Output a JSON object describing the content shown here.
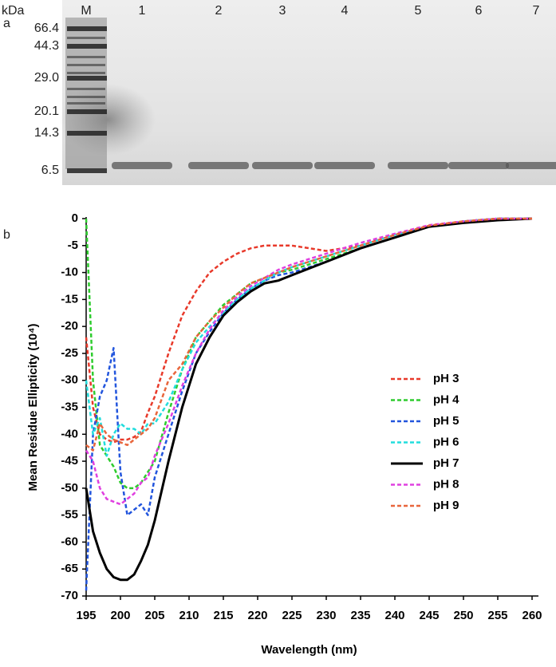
{
  "gel": {
    "panel_label": "a",
    "unit_label": "kDa",
    "lane_labels": [
      "M",
      "1",
      "2",
      "3",
      "4",
      "5",
      "6",
      "7"
    ],
    "marker_labels": [
      "66.4",
      "44.3",
      "29.0",
      "20.1",
      "14.3",
      "6.5"
    ]
  },
  "chart_data": {
    "type": "line",
    "panel_label": "b",
    "x_label": "Wavelength (nm)",
    "y_label": "Mean Residue Ellipticity (10⁴)",
    "x": [
      195,
      196,
      197,
      198,
      199,
      200,
      201,
      202,
      203,
      204,
      205,
      207,
      209,
      211,
      213,
      215,
      217,
      219,
      221,
      223,
      225,
      230,
      235,
      240,
      245,
      250,
      255,
      260
    ],
    "series": [
      {
        "name": "pH 3",
        "color": "#e8392a",
        "line_style": "dashed",
        "values": [
          -22,
          -35,
          -40,
          -41,
          -41.5,
          -41,
          -41,
          -40.5,
          -39.5,
          -36,
          -33,
          -25,
          -18,
          -13.5,
          -10,
          -8,
          -6.5,
          -5.5,
          -5,
          -5,
          -5,
          -6,
          -5,
          -3,
          -1.5,
          -0.5,
          0,
          0
        ]
      },
      {
        "name": "pH 4",
        "color": "#2ecc2e",
        "line_style": "dashed",
        "values": [
          0,
          -30,
          -42,
          -44,
          -46,
          -49,
          -50,
          -50,
          -49,
          -47,
          -45,
          -36,
          -28,
          -22,
          -19,
          -16,
          -14,
          -12,
          -11,
          -10,
          -9.5,
          -7.5,
          -5.5,
          -3.5,
          -1.5,
          -0.5,
          0,
          0
        ]
      },
      {
        "name": "pH 5",
        "color": "#2255dd",
        "line_style": "dashed",
        "values": [
          -69,
          -40,
          -33,
          -30,
          -24,
          -47,
          -55,
          -54,
          -53,
          -55,
          -48,
          -40,
          -32,
          -25,
          -21,
          -17.5,
          -15,
          -13,
          -11.5,
          -10.5,
          -10,
          -8,
          -5.5,
          -3.5,
          -1.5,
          -0.5,
          0,
          0
        ]
      },
      {
        "name": "pH 6",
        "color": "#22dddd",
        "line_style": "dashed",
        "values": [
          -30,
          -40,
          -37,
          -44,
          -40,
          -38,
          -39,
          -39,
          -40,
          -38,
          -38,
          -34,
          -28,
          -23,
          -20,
          -17.5,
          -15,
          -13,
          -11.5,
          -10,
          -9,
          -7,
          -5,
          -3,
          -1.5,
          -0.5,
          0,
          0
        ]
      },
      {
        "name": "pH 7",
        "color": "#000000",
        "line_style": "solid",
        "values": [
          -50,
          -58,
          -62,
          -65,
          -66.5,
          -67,
          -67,
          -66,
          -63.5,
          -60.5,
          -56,
          -45,
          -35,
          -27,
          -22,
          -18,
          -15.5,
          -13.5,
          -12,
          -11.5,
          -10.5,
          -8,
          -5.5,
          -3.5,
          -1.5,
          -0.8,
          -0.3,
          0
        ]
      },
      {
        "name": "pH 8",
        "color": "#e040e0",
        "line_style": "dashed",
        "values": [
          -43,
          -45,
          -50,
          -52,
          -52.5,
          -53,
          -52,
          -51,
          -49,
          -48,
          -44,
          -38,
          -31,
          -25,
          -20.5,
          -17,
          -14.5,
          -12.5,
          -11,
          -9.5,
          -8.5,
          -6.5,
          -4.5,
          -2.8,
          -1.2,
          -0.5,
          0,
          0
        ]
      },
      {
        "name": "pH 9",
        "color": "#e8663c",
        "line_style": "dashed",
        "values": [
          -42,
          -43,
          -38,
          -40,
          -41,
          -41.5,
          -42,
          -41,
          -40,
          -39,
          -37,
          -30,
          -27,
          -22,
          -19,
          -16.5,
          -14,
          -12,
          -11,
          -10,
          -9,
          -7,
          -5,
          -3,
          -1.3,
          -0.5,
          0,
          0
        ]
      }
    ],
    "xlim": [
      195,
      260
    ],
    "xticks": [
      195,
      200,
      205,
      210,
      215,
      220,
      225,
      230,
      235,
      240,
      245,
      250,
      255,
      260
    ],
    "ylim": [
      -70,
      0
    ],
    "yticks": [
      0,
      -5,
      -10,
      -15,
      -20,
      -25,
      -30,
      -35,
      -40,
      -45,
      -50,
      -55,
      -60,
      -65,
      -70
    ],
    "grid": false,
    "legend": "right"
  }
}
